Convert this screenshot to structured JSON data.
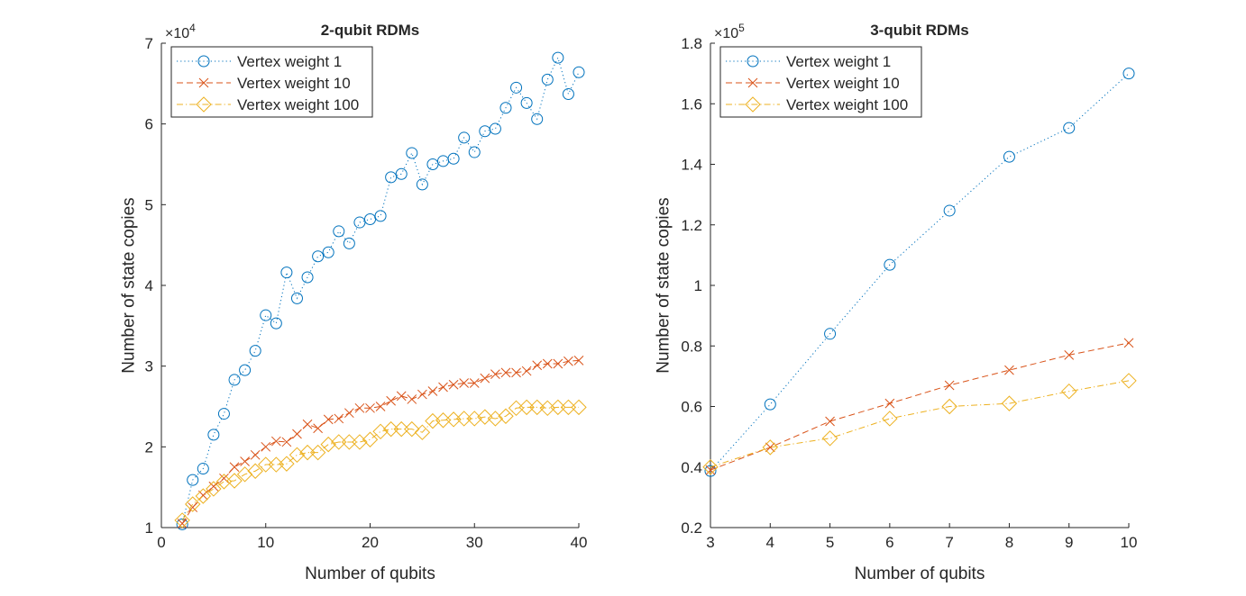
{
  "colors": {
    "series1": "#0072BD",
    "series2": "#D95319",
    "series3": "#EDB120",
    "axis": "#262626"
  },
  "chart_data": [
    {
      "type": "line",
      "title": "2-qubit RDMs",
      "xlabel": "Number of qubits",
      "ylabel": "Number of state copies",
      "y_exponent_label": "×10",
      "y_exponent": "4",
      "xlim": [
        0,
        40
      ],
      "ylim": [
        1,
        7
      ],
      "y_scale_factor": 10000,
      "xticks": [
        0,
        10,
        20,
        30,
        40
      ],
      "yticks": [
        1,
        2,
        3,
        4,
        5,
        6,
        7
      ],
      "grid": false,
      "legend_position": "top-left",
      "x": [
        2,
        3,
        4,
        5,
        6,
        7,
        8,
        9,
        10,
        11,
        12,
        13,
        14,
        15,
        16,
        17,
        18,
        19,
        20,
        21,
        22,
        23,
        24,
        25,
        26,
        27,
        28,
        29,
        30,
        31,
        32,
        33,
        34,
        35,
        36,
        37,
        38,
        39,
        40
      ],
      "series": [
        {
          "name": "Vertex weight 1",
          "color": "#0072BD",
          "marker": "circle",
          "line": "dotted",
          "values": [
            1.04,
            1.59,
            1.73,
            2.15,
            2.41,
            2.83,
            2.95,
            3.19,
            3.63,
            3.53,
            4.16,
            3.84,
            4.1,
            4.36,
            4.41,
            4.67,
            4.52,
            4.78,
            4.82,
            4.86,
            5.34,
            5.38,
            5.64,
            5.25,
            5.5,
            5.54,
            5.57,
            5.83,
            5.65,
            5.91,
            5.94,
            6.2,
            6.45,
            6.26,
            6.06,
            6.55,
            6.82,
            6.37,
            6.64
          ]
        },
        {
          "name": "Vertex weight 10",
          "color": "#D95319",
          "marker": "x",
          "line": "dashed",
          "values": [
            1.05,
            1.25,
            1.4,
            1.51,
            1.61,
            1.75,
            1.82,
            1.9,
            2.0,
            2.07,
            2.06,
            2.16,
            2.28,
            2.23,
            2.34,
            2.35,
            2.42,
            2.48,
            2.48,
            2.5,
            2.57,
            2.63,
            2.59,
            2.65,
            2.69,
            2.74,
            2.77,
            2.79,
            2.79,
            2.85,
            2.9,
            2.92,
            2.92,
            2.94,
            3.01,
            3.03,
            3.03,
            3.06,
            3.07
          ]
        },
        {
          "name": "Vertex weight 100",
          "color": "#EDB120",
          "marker": "diamond",
          "line": "dashdot",
          "values": [
            1.09,
            1.29,
            1.39,
            1.48,
            1.57,
            1.58,
            1.66,
            1.7,
            1.78,
            1.78,
            1.79,
            1.9,
            1.93,
            1.93,
            2.03,
            2.06,
            2.06,
            2.06,
            2.09,
            2.19,
            2.22,
            2.22,
            2.22,
            2.18,
            2.32,
            2.33,
            2.34,
            2.35,
            2.35,
            2.37,
            2.35,
            2.38,
            2.48,
            2.49,
            2.49,
            2.48,
            2.49,
            2.49,
            2.49
          ]
        }
      ]
    },
    {
      "type": "line",
      "title": "3-qubit RDMs",
      "xlabel": "Number of qubits",
      "ylabel": "Number of state copies",
      "y_exponent_label": "×10",
      "y_exponent": "5",
      "xlim": [
        3,
        10
      ],
      "ylim": [
        0.2,
        1.8
      ],
      "y_scale_factor": 100000,
      "xticks": [
        3,
        4,
        5,
        6,
        7,
        8,
        9,
        10
      ],
      "yticks": [
        0.2,
        0.4,
        0.6,
        0.8,
        1,
        1.2,
        1.4,
        1.6,
        1.8
      ],
      "grid": false,
      "legend_position": "top-left",
      "x": [
        3,
        4,
        5,
        6,
        7,
        8,
        9,
        10
      ],
      "series": [
        {
          "name": "Vertex weight 1",
          "color": "#0072BD",
          "marker": "circle",
          "line": "dotted",
          "values": [
            0.387,
            0.607,
            0.84,
            1.068,
            1.247,
            1.425,
            1.52,
            1.7
          ]
        },
        {
          "name": "Vertex weight 10",
          "color": "#D95319",
          "marker": "x",
          "line": "dashed",
          "values": [
            0.39,
            0.465,
            0.551,
            0.61,
            0.67,
            0.72,
            0.77,
            0.81
          ]
        },
        {
          "name": "Vertex weight 100",
          "color": "#EDB120",
          "marker": "diamond",
          "line": "dashdot",
          "values": [
            0.4,
            0.465,
            0.495,
            0.56,
            0.6,
            0.61,
            0.65,
            0.685
          ]
        }
      ]
    }
  ]
}
